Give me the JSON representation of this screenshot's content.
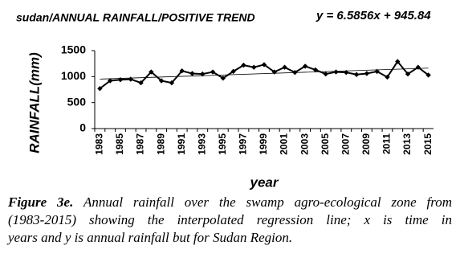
{
  "chart_data": {
    "type": "line",
    "title": "sudan/ANNUAL RAINFALL/POSITIVE TREND",
    "x_label": "year",
    "y_label": "RAINFALL(mm)",
    "categories": [
      "1983",
      null,
      "1985",
      null,
      "1987",
      null,
      "1989",
      null,
      "1991",
      null,
      "1993",
      null,
      "1995",
      null,
      "1997",
      null,
      "1999",
      null,
      "2001",
      null,
      "2003",
      null,
      "2005",
      null,
      "2007",
      null,
      "2009",
      null,
      "2011",
      null,
      "2013",
      null,
      "2015"
    ],
    "series": [
      {
        "color": "#000000",
        "values": [
          770,
          920,
          940,
          950,
          880,
          1090,
          920,
          880,
          1110,
          1060,
          1050,
          1090,
          970,
          1100,
          1220,
          1180,
          1230,
          1090,
          1180,
          1080,
          1200,
          1130,
          1050,
          1090,
          1080,
          1040,
          1060,
          1100,
          990,
          1290,
          1050,
          1180,
          1030
        ]
      }
    ],
    "trendline": {
      "slope": 6.5856,
      "intercept": 945.84,
      "label": "y = 6.5856x + 945.84"
    },
    "ylim": [
      0,
      1500
    ],
    "yticks": [
      0,
      500,
      1000,
      1500
    ],
    "grid": false
  },
  "caption": {
    "label": "Figure 3e.",
    "lines": [
      "Annual rainfall over the swamp agro-ecological zone from",
      "(1983-2015) showing the interpolated regression line; x is time in",
      "years and y is annual rainfall but for Sudan Region."
    ]
  }
}
